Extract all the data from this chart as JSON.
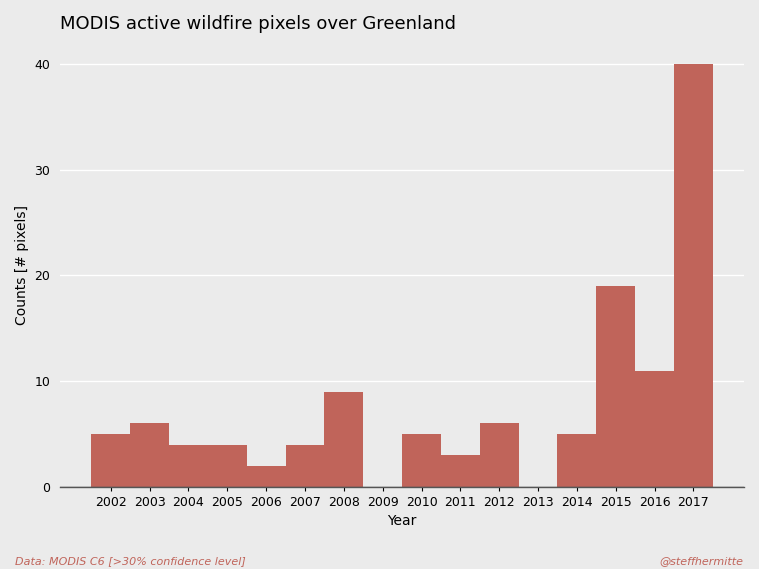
{
  "title": "MODIS active wildfire pixels over Greenland",
  "xlabel": "Year",
  "ylabel": "Counts [# pixels]",
  "years": [
    2002,
    2003,
    2004,
    2005,
    2006,
    2007,
    2008,
    2009,
    2010,
    2011,
    2012,
    2013,
    2014,
    2015,
    2016,
    2017
  ],
  "values": [
    5,
    6,
    4,
    4,
    2,
    4,
    9,
    0,
    5,
    3,
    6,
    0,
    5,
    19,
    11,
    40
  ],
  "bar_color": "#c0645a",
  "background_color": "#ebebeb",
  "grid_color": "#ffffff",
  "title_fontsize": 13,
  "axis_label_fontsize": 10,
  "tick_fontsize": 9,
  "ylim": [
    0,
    42
  ],
  "yticks": [
    0,
    10,
    20,
    30,
    40
  ],
  "footnote_left": "Data: MODIS C6 [>30% confidence level]",
  "footnote_right": "@steffhermitte",
  "footnote_color_left": "#c0645a",
  "footnote_color_right": "#c0645a"
}
